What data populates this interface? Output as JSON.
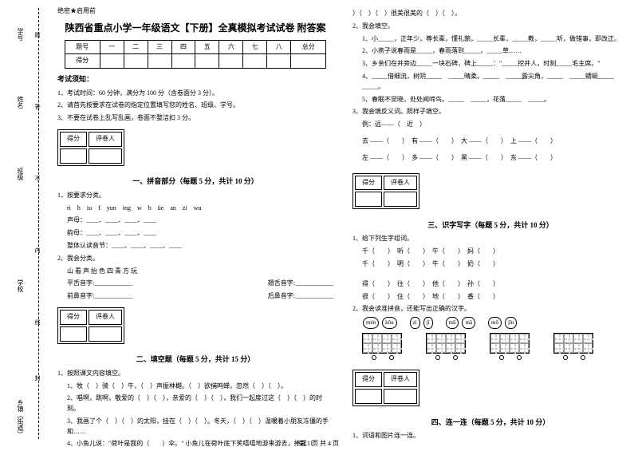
{
  "sidebar": {
    "labels": [
      "学号",
      "姓名",
      "班级",
      "学校",
      "乡镇（街道）"
    ],
    "cutlabels": [
      "题",
      "答",
      "不",
      "内",
      "线",
      "封"
    ]
  },
  "header": {
    "secret": "绝密★启用前",
    "title": "陕西省重点小学一年级语文【下册】全真模拟考试试卷 附答案"
  },
  "score_table": {
    "headers": [
      "题号",
      "一",
      "二",
      "三",
      "四",
      "五",
      "六",
      "七",
      "八",
      "总分"
    ],
    "row_label": "得分"
  },
  "notice": {
    "title": "考试须知：",
    "items": [
      "1、考试时间：60 分钟，满分为 100 分（含卷面分 3 分）。",
      "2、请首先按要求在试卷的指定位置填写您的姓名、班级、学号。",
      "3、不要在试卷上乱写乱画，卷面不整洁扣 3 分。"
    ]
  },
  "gradebox": {
    "c1": "得分",
    "c2": "评卷人"
  },
  "sections": {
    "s1": {
      "title": "一、拼音部分（每题 5 分，共计 10 分）",
      "q1": "1、按要求分类。",
      "pinyin_line": "ri　h　iu　f　yun　ing　w　b　üe　an　zi　wu",
      "shengmu": "声母：____、____、____、____",
      "yunmu": "韵母：____、____、____、____",
      "zhengti": "整体认读音节：____、____、____、____",
      "q2": "2、我会分类。",
      "chars": "山 看 声 抬 色 四 青 方 玩",
      "pingshe": "平舌音字:____________",
      "qiaoshe": "翘舌音字:____________",
      "qianbi": "前鼻音字:____________",
      "houbi": "后鼻音字:____________"
    },
    "s2": {
      "title": "二、填空题（每题 5 分，共计 15 分）",
      "q1": "1、按照课文内容填空。",
      "items": [
        "1、牧（　）骑（　）牛，（　）声振林樾。（　）欲捕鸣蝉，忽然（　）（　）。",
        "2、唱啊，跳啊，敬爱的（　）（　），亲爱的（　）（　），我们一起度过这（　）（　）的时刻。",
        "3、我画了个（　）（　）的太阳，挂在（　）（　）。冬天，（　）（　）温暖着小朋友冻僵的手和……",
        "4、小鱼儿说：\"荷叶是我的（　　）伞。\" 小鱼儿在荷叶底下笑嘻嘻地游来游去，捧起（　"
      ]
    },
    "right_top": {
      "cont": "）（　）（　）很美很美的（　）（　）。",
      "q2": "2、我会填空。",
      "items": [
        "1、小_____，正年少，尊长辈，懂礼貌，_____长辈，_____教，_____听，做错事，即改正。",
        "2、小燕子说春雨是_____，春雨落到_____，_____草……",
        "3、乡亲们在井旁边_____一块石碑，碑上_____：\"_____挖井人，时刻_____毛主席。\"",
        "4、_____借细流，树阴_____　_____晴柔。_____　_____露尖角，_____　_____蜻蜓_____　_____。",
        "5、春眠不觉晓，处处闻啼鸟。_____　_____，花落_____　_____。"
      ],
      "q3": "3、我会填反义词。照样子填空。",
      "example": "例：远——（　近　）",
      "row1": "去 ——（　　）　有 ——（　　）　大 ——（　　）　上 ——（　　）",
      "row2": "左 ——（　　）　多 ——（　　）　黑 ——（　　）　东 ——（　　）"
    },
    "s3": {
      "title": "三、识字写字（每题 5 分，共计 10 分）",
      "q1": "1、给下列生字组词。",
      "rows": [
        "千（　　）　听（　　）　午（　　）　妈（　　）",
        "千（　　）　明（　　）　牛（　　）　奶（　　）",
        "得（　　）　往（　　）　他（　　）　孙（　　）",
        "很（　　）　住（　　）　地（　　）　香（　　）"
      ],
      "q2": "2、我会读准拼音，还能写出正确的汉字。",
      "pinyin_groups": [
        [
          "mén",
          "kǒu"
        ],
        [
          "zì",
          "jǐ"
        ],
        [
          "mǔ",
          "mǎ"
        ],
        [
          "mǒ",
          "jīn"
        ]
      ]
    },
    "s4": {
      "title": "四、连一连（每题 5 分，共计 10 分）",
      "q1": "1、词语和图片连一连。"
    }
  },
  "footer": "第 1 页 共 4 页"
}
